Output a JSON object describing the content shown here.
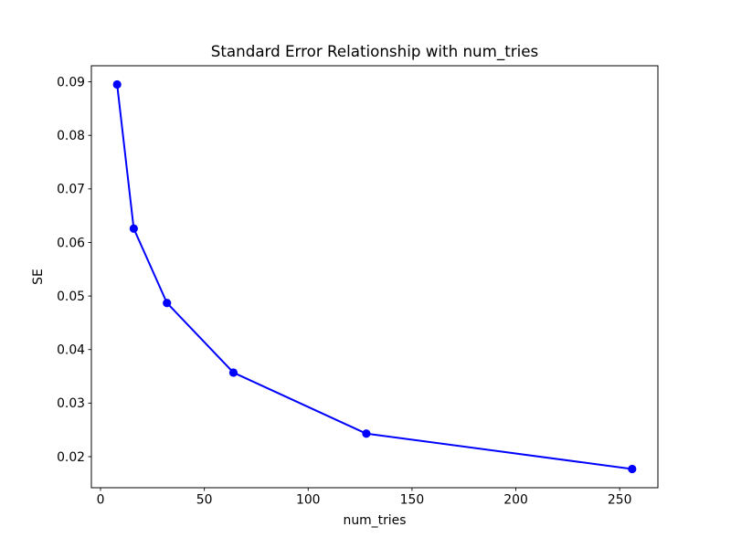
{
  "chart_data": {
    "type": "line",
    "title": "Standard Error Relationship with num_tries",
    "xlabel": "num_tries",
    "ylabel": "SE",
    "x": [
      8,
      16,
      32,
      64,
      128,
      256
    ],
    "series": [
      {
        "name": "SE",
        "values": [
          0.0895,
          0.0626,
          0.0487,
          0.0357,
          0.0243,
          0.0177
        ],
        "color": "#0000ff",
        "marker": "circle",
        "line_style": "solid"
      }
    ],
    "xlim": [
      -4.4,
      268.4
    ],
    "ylim": [
      0.0142,
      0.093
    ],
    "xticks": [
      0,
      50,
      100,
      150,
      200,
      250
    ],
    "xtick_labels": [
      "0",
      "50",
      "100",
      "150",
      "200",
      "250"
    ],
    "yticks": [
      0.02,
      0.03,
      0.04,
      0.05,
      0.06,
      0.07,
      0.08,
      0.09
    ],
    "ytick_labels": [
      "0.02",
      "0.03",
      "0.04",
      "0.05",
      "0.06",
      "0.07",
      "0.08",
      "0.09"
    ],
    "grid": false,
    "legend": "none",
    "colors": {
      "background": "#ffffff",
      "axes": "#000000",
      "text": "#000000",
      "line": "#0000ff"
    }
  }
}
